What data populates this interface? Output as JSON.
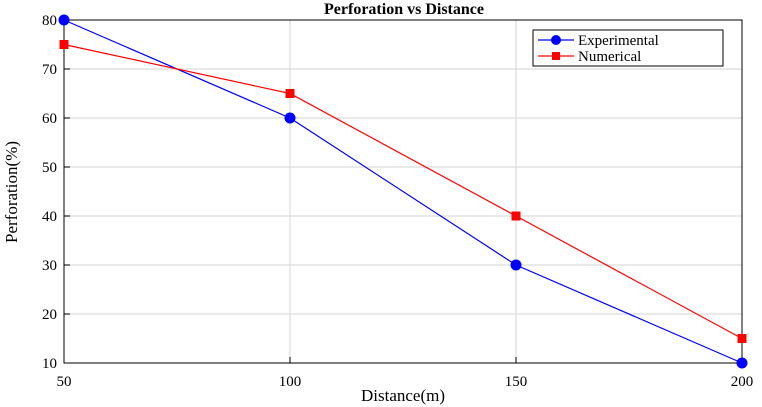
{
  "chart_data": {
    "type": "line",
    "title": "Perforation vs Distance",
    "xlabel": "Distance(m)",
    "ylabel": "Perforation(%)",
    "xlim": [
      50,
      200
    ],
    "ylim": [
      10,
      80
    ],
    "xticks": [
      50,
      100,
      150,
      200
    ],
    "yticks": [
      10,
      20,
      30,
      40,
      50,
      60,
      70,
      80
    ],
    "grid": true,
    "legend_position": "top-right",
    "series": [
      {
        "name": "Experimental",
        "x": [
          50,
          100,
          150,
          200
        ],
        "values": [
          80,
          60,
          30,
          10
        ],
        "color": "#0000ff",
        "marker": "circle"
      },
      {
        "name": "Numerical",
        "x": [
          50,
          100,
          150,
          200
        ],
        "values": [
          75,
          65,
          40,
          15
        ],
        "color": "#ff0000",
        "marker": "square"
      }
    ]
  }
}
